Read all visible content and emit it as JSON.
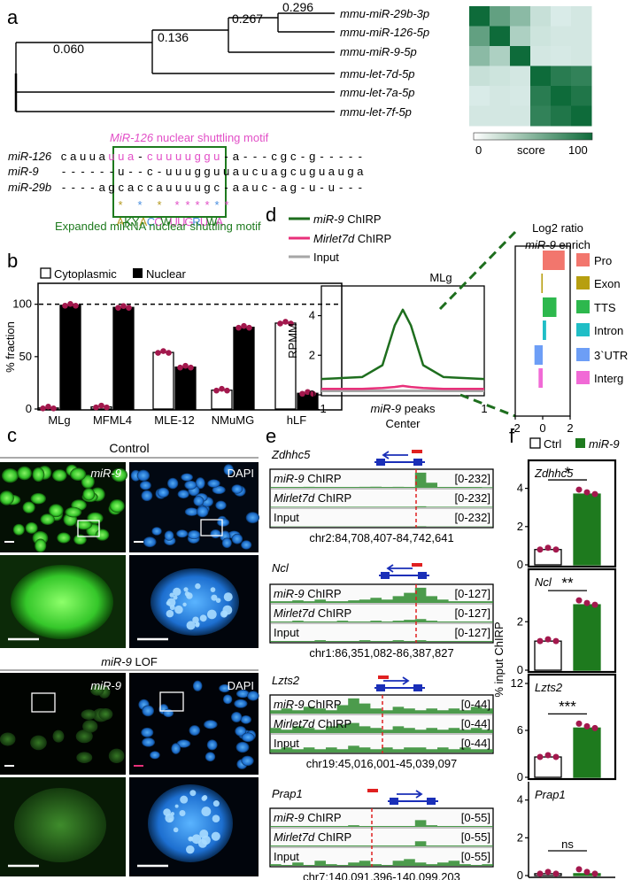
{
  "panels": {
    "a": {
      "label": "a",
      "branch_lengths": [
        "0.060",
        "0.136",
        "0.267",
        "0.296"
      ],
      "leaves": [
        "mmu-miR-29b-3p",
        "mmu-miR-126-5p",
        "mmu-miR-9-5p",
        "mmu-let-7d-5p",
        "mmu-let-7a-5p",
        "mmu-let-7f-5p"
      ],
      "colorbar": {
        "min": "0",
        "label": "score",
        "max": "100"
      },
      "heatmap_scores": [
        [
          100,
          55,
          35,
          10,
          4,
          6
        ],
        [
          55,
          100,
          20,
          8,
          6,
          6
        ],
        [
          35,
          20,
          100,
          6,
          5,
          6
        ],
        [
          10,
          8,
          6,
          100,
          85,
          80
        ],
        [
          4,
          6,
          5,
          85,
          100,
          90
        ],
        [
          6,
          6,
          6,
          80,
          90,
          100
        ]
      ],
      "motif_title": "MiR-126 nuclear shuttling motif",
      "seq_names": [
        "miR-126",
        "miR-9",
        "miR-29b"
      ],
      "seqs": [
        "cauuauua-cuuuuggu-acgc-g-----",
        "------u--c-uuugguuaucuagcuguauga",
        "----agcaccauuuugc-aauc-ag-u-u"
      ],
      "seq_rows": [
        [
          "c",
          "a",
          "u",
          "u",
          "a",
          "u",
          "u",
          "a",
          "-",
          "c",
          "u",
          "u",
          "u",
          "u",
          "g",
          "g",
          "u",
          "-",
          "a",
          "-",
          "-",
          "-",
          "c",
          "g",
          "c",
          "-",
          "g",
          "-",
          "-",
          "-",
          "-",
          "-"
        ],
        [
          "-",
          "-",
          "-",
          "-",
          "-",
          "-",
          "u",
          "-",
          "-",
          "c",
          "-",
          "u",
          "u",
          "u",
          "g",
          "g",
          "u",
          "u",
          "a",
          "u",
          "c",
          "u",
          "a",
          "g",
          "c",
          "u",
          "g",
          "u",
          "a",
          "u",
          "g",
          "a"
        ],
        [
          "-",
          "-",
          "-",
          "-",
          "a",
          "g",
          "c",
          "a",
          "c",
          "c",
          "a",
          "u",
          "u",
          "u",
          "u",
          "g",
          "c",
          "-",
          "a",
          "a",
          "u",
          "c",
          "-",
          "a",
          "g",
          "-",
          "u",
          "-",
          "u",
          "-",
          "-",
          "-"
        ]
      ],
      "stars": [
        "*",
        "*",
        "*",
        "*",
        "*",
        "*",
        "*",
        "*",
        "*",
        "*",
        "*"
      ],
      "consensus": [
        "A",
        "K",
        "Y",
        "A",
        "C",
        "C",
        "W",
        "U",
        "U",
        "G",
        "R",
        "U",
        "W",
        "A"
      ],
      "expanded_title": "Expanded miRNA nuclear shuttling motif",
      "colors": {
        "motif": "#e24fc7",
        "box": "#1e7a1e",
        "star_gold": "#b59a1f",
        "star_blue": "#4a8fe0",
        "star_pink": "#e24fc7",
        "heat_high": "#0e6b3a",
        "heat_low": "#eaf6f6"
      }
    },
    "b": {
      "label": "b",
      "legend_cyto": "Cytoplasmic",
      "legend_nuc": "Nuclear",
      "ylabel": "% fraction",
      "yticks": [
        "0",
        "50",
        "100"
      ],
      "categories": [
        "MLg",
        "MFML4",
        "MLE-12",
        "NMuMG",
        "hLF"
      ]
    },
    "c": {
      "label": "c",
      "top_title": "Control",
      "bottom_title_em": "miR-9",
      "bottom_title_rest": " LOF",
      "mir9": "miR-9",
      "dapi": "DAPI"
    },
    "d": {
      "label": "d",
      "legend": [
        "miR-9 ChIRP",
        "Mirlet7d ChIRP",
        "Input"
      ],
      "legend_em": [
        "miR-9",
        "Mirlet7d",
        ""
      ],
      "legend_rest": [
        " ChIRP",
        " ChIRP",
        "Input"
      ],
      "plot_title": "MLg",
      "ylabel": "RPMM",
      "yticks": [
        "0",
        "2",
        "4"
      ],
      "xticks": [
        "-1",
        "1"
      ],
      "xlabel_em": "miR-9",
      "xlabel_rest": " peaks",
      "xlabel2": "Center",
      "log2_title1": "Log2 ratio",
      "log2_title2_em": "miR-9",
      "log2_title2_rest": " enrich",
      "bar_xticks": [
        "-2",
        "0",
        "2"
      ],
      "categories": [
        "Pro",
        "Exon",
        "TTS",
        "Intron",
        "3`UTR",
        "Interg"
      ],
      "category_colors": [
        "#f2766d",
        "#b79f10",
        "#2db84d",
        "#20bec6",
        "#6d9ef6",
        "#f16ad6"
      ],
      "series_colors": [
        "#1e6e1e",
        "#e8307a",
        "#a6a6a6"
      ]
    },
    "e": {
      "label": "e",
      "tracks": [
        {
          "gene": "Zdhhc5",
          "coords": "chr2:84,708,407-84,742,641",
          "rows": [
            "miR-9 ChIRP",
            "Mirlet7d ChIRP",
            "Input"
          ],
          "ranges": [
            "[0-232]",
            "[0-232]",
            "[0-232]"
          ]
        },
        {
          "gene": "Ncl",
          "coords": "chr1:86,351,082-86,387,827",
          "rows": [
            "miR-9 ChIRP",
            "Mirlet7d ChIRP",
            "Input"
          ],
          "ranges": [
            "[0-127]",
            "[0-127]",
            "[0-127]"
          ]
        },
        {
          "gene": "Lzts2",
          "coords": "chr19:45,016,001-45,039,097",
          "rows": [
            "miR-9 ChIRP",
            "Mirlet7d ChIRP",
            "Input"
          ],
          "ranges": [
            "[0-44]",
            "[0-44]",
            "[0-44]"
          ]
        },
        {
          "gene": "Prap1",
          "coords": "chr7:140,091,396-140,099,203",
          "rows": [
            "miR-9 ChIRP",
            "Mirlet7d ChIRP",
            "Input"
          ],
          "ranges": [
            "[0-55]",
            "[0-55]",
            "[0-55]"
          ]
        }
      ]
    },
    "f": {
      "label": "f",
      "legend_ctrl": "Ctrl",
      "legend_mir9": "miR-9",
      "ylabel": "% input ChIRP",
      "subplots": [
        {
          "gene": "Zdhhc5",
          "yticks": [
            "0",
            "2",
            "4"
          ],
          "sig": "*"
        },
        {
          "gene": "Ncl",
          "yticks": [
            "0",
            "2"
          ],
          "sig": "**"
        },
        {
          "gene": "Lzts2",
          "yticks": [
            "0",
            "6",
            "12"
          ],
          "sig": "***"
        },
        {
          "gene": "Prap1",
          "yticks": [
            "0",
            "2",
            "4"
          ],
          "sig": "ns"
        }
      ]
    }
  },
  "chart_data": [
    {
      "type": "bar",
      "title": "",
      "ylabel": "% fraction",
      "categories": [
        "MLg",
        "MFML4",
        "MLE-12",
        "NMuMG",
        "hLF"
      ],
      "series": [
        {
          "name": "Cytoplasmic",
          "values": [
            1,
            2,
            54,
            18,
            82
          ]
        },
        {
          "name": "Nuclear",
          "values": [
            99,
            97,
            40,
            78,
            15
          ]
        }
      ],
      "ylim": [
        0,
        120
      ]
    },
    {
      "type": "line",
      "title": "MLg",
      "ylabel": "RPMM",
      "x": [
        -1,
        -0.5,
        -0.25,
        -0.1,
        0,
        0.1,
        0.25,
        0.5,
        1
      ],
      "series": [
        {
          "name": "miR-9 ChIRP",
          "values": [
            0.8,
            0.9,
            1.5,
            3.5,
            4.3,
            3.5,
            1.5,
            0.9,
            0.8
          ]
        },
        {
          "name": "Mirlet7d ChIRP",
          "values": [
            0.3,
            0.3,
            0.35,
            0.4,
            0.45,
            0.4,
            0.35,
            0.3,
            0.3
          ]
        },
        {
          "name": "Input",
          "values": [
            0.2,
            0.2,
            0.2,
            0.2,
            0.2,
            0.2,
            0.2,
            0.2,
            0.2
          ]
        }
      ],
      "ylim": [
        0,
        5.5
      ],
      "xlim": [
        -1,
        1
      ]
    },
    {
      "type": "bar",
      "title": "Log2 ratio miR-9 enrich",
      "categories": [
        "Pro",
        "Exon",
        "TTS",
        "Intron",
        "3`UTR",
        "Interg"
      ],
      "values": [
        1.6,
        -0.1,
        1.0,
        0.25,
        -0.6,
        -0.3
      ],
      "xlim": [
        -2,
        2
      ]
    },
    {
      "type": "bar",
      "title": "Zdhhc5",
      "categories": [
        "Ctrl",
        "miR-9"
      ],
      "values": [
        0.8,
        3.7
      ],
      "ylim": [
        0,
        5
      ]
    },
    {
      "type": "bar",
      "title": "Ncl",
      "categories": [
        "Ctrl",
        "miR-9"
      ],
      "values": [
        1.2,
        2.7
      ],
      "ylim": [
        0,
        3.8
      ]
    },
    {
      "type": "bar",
      "title": "Lzts2",
      "categories": [
        "Ctrl",
        "miR-9"
      ],
      "values": [
        2.6,
        6.3
      ],
      "ylim": [
        0,
        12
      ]
    },
    {
      "type": "bar",
      "title": "Prap1",
      "categories": [
        "Ctrl",
        "miR-9"
      ],
      "values": [
        0.1,
        0.1
      ],
      "ylim": [
        0,
        4.5
      ]
    }
  ]
}
